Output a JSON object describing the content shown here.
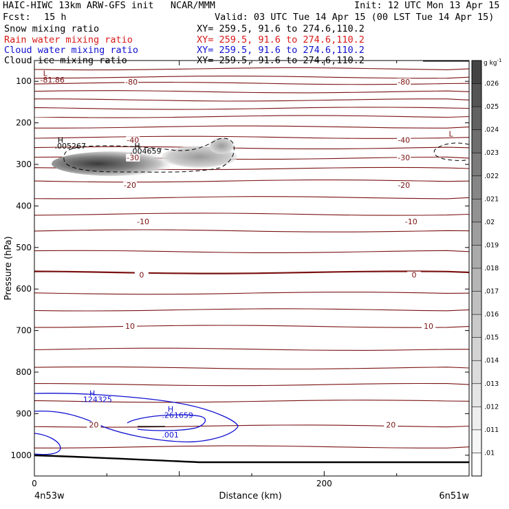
{
  "header": {
    "title_left": "HAIC-HIWC 13km ARW-GFS init   NCAR/MMM",
    "init": "Init: 12 UTC Mon 13 Apr 15",
    "fcst_label": "Fcst:",
    "fcst_value": "15 h",
    "valid": "Valid: 03 UTC Tue 14 Apr 15 (00 LST Tue 14 Apr 15)",
    "fields": [
      {
        "name": "Snow mixing ratio",
        "xy": "XY= 259.5, 91.6 to 274.6,110.2",
        "color": "#000000"
      },
      {
        "name": "Rain water mixing ratio",
        "xy": "XY= 259.5, 91.6 to 274.6,110.2",
        "color": "#d81818"
      },
      {
        "name": "Cloud water mixing ratio",
        "xy": "XY= 259.5, 91.6 to 274.6,110.2",
        "color": "#1010d0"
      },
      {
        "name": "Cloud ice mixing ratio",
        "xy": "XY= 259.5, 91.6 to 274.6,110.2",
        "color": "#000000"
      }
    ]
  },
  "chart_data": {
    "type": "cross-section contour",
    "ylabel": "Pressure (hPa)",
    "xlabel": "Distance (km)",
    "y_ticks": [
      "100",
      "200",
      "300",
      "400",
      "500",
      "600",
      "700",
      "800",
      "900",
      "1000"
    ],
    "y_values": [
      100,
      200,
      300,
      400,
      500,
      600,
      700,
      800,
      900,
      1000
    ],
    "ylim": [
      50,
      1050
    ],
    "y_reversed": true,
    "x_ticks": [
      "0",
      "200"
    ],
    "x_values": [
      0,
      200
    ],
    "xlim": [
      0,
      300
    ],
    "x_endpoints": {
      "left": "4n53w",
      "right": "6n51w"
    },
    "temperature_contours": {
      "color": "#7a1010",
      "isotherm_labels": [
        {
          "text": "-80",
          "x": 67,
          "p": 106
        },
        {
          "text": "-80",
          "x": 255,
          "p": 106
        },
        {
          "text": "-40",
          "x": 68,
          "p": 246
        },
        {
          "text": "-40",
          "x": 255,
          "p": 246
        },
        {
          "text": "-30",
          "x": 68,
          "p": 288
        },
        {
          "text": "-30",
          "x": 255,
          "p": 288
        },
        {
          "text": "-20",
          "x": 66,
          "p": 355
        },
        {
          "text": "-20",
          "x": 255,
          "p": 355
        },
        {
          "text": "-10",
          "x": 75,
          "p": 442
        },
        {
          "text": "-10",
          "x": 260,
          "p": 442
        },
        {
          "text": "0",
          "x": 74,
          "p": 571
        },
        {
          "text": "0",
          "x": 262,
          "p": 571
        },
        {
          "text": "10",
          "x": 66,
          "p": 694
        },
        {
          "text": "10",
          "x": 272,
          "p": 694
        },
        {
          "text": "20",
          "x": 41,
          "p": 932
        },
        {
          "text": "20",
          "x": 246,
          "p": 932
        }
      ],
      "pressure_levels": [
        70,
        90,
        105,
        125,
        145,
        165,
        185,
        210,
        235,
        260,
        285,
        310,
        340,
        380,
        420,
        460,
        510,
        560,
        610,
        650,
        690,
        745,
        790,
        830,
        870,
        930,
        980
      ]
    },
    "snow": {
      "labels": [
        {
          "text": "H",
          "x": 16,
          "p": 248
        },
        {
          "text": ".005267",
          "x": 14,
          "p": 262
        },
        {
          "text": "H",
          "x": 69,
          "p": 262
        },
        {
          "text": ".004659",
          "x": 66,
          "p": 274
        }
      ]
    },
    "cloud_water": {
      "color": "#1010d0",
      "labels": [
        {
          "text": "H",
          "x": 38,
          "p": 857
        },
        {
          "text": ".124325",
          "x": 32,
          "p": 872
        },
        {
          "text": "H",
          "x": 92,
          "p": 895
        },
        {
          "text": ".261659",
          "x": 88,
          "p": 910
        },
        {
          "text": ".001",
          "x": 88,
          "p": 957
        }
      ]
    },
    "ice_labels": [
      {
        "text": "L",
        "x": 6,
        "p": 87
      },
      {
        "text": "-81.86",
        "x": 4,
        "p": 103
      },
      {
        "text": "L",
        "x": 286,
        "p": 233
      }
    ],
    "colorbar": {
      "unit": "g kg",
      "unit_exp": "-1",
      "labels": [
        ".026",
        ".025",
        ".024",
        ".023",
        ".022",
        ".021",
        ".02",
        ".019",
        ".018",
        ".017",
        ".016",
        ".015",
        ".014",
        ".013",
        ".012",
        ".011",
        ".01"
      ],
      "colors": [
        "#444444",
        "#555555",
        "#626262",
        "#6e6e6e",
        "#7b7b7b",
        "#868686",
        "#929292",
        "#9e9e9e",
        "#aaaaaa",
        "#b5b5b5",
        "#c0c0c0",
        "#cacaca",
        "#d3d3d3",
        "#dcdcdc",
        "#e5e5e5",
        "#eeeeee",
        "#f6f6f6",
        "#ffffff"
      ]
    },
    "grid": false,
    "legend": "none"
  }
}
